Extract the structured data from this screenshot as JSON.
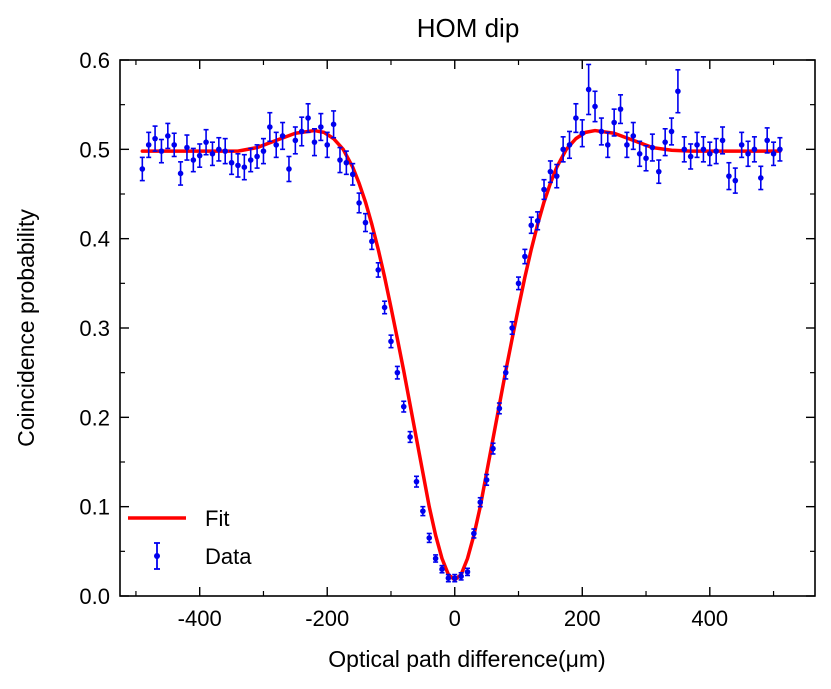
{
  "chart_data": {
    "type": "scatter",
    "title": "HOM dip",
    "xlabel": "Optical path difference(μm)",
    "ylabel": "Coincidence probability",
    "xlim": [
      -525,
      565
    ],
    "ylim": [
      0.0,
      0.6
    ],
    "xticks": [
      -400,
      -200,
      0,
      200,
      400
    ],
    "yticks": [
      0.0,
      0.1,
      0.2,
      0.3,
      0.4,
      0.5,
      0.6
    ],
    "xtick_labels": [
      "-400",
      "-200",
      "0",
      "200",
      "400"
    ],
    "ytick_labels": [
      "0.0",
      "0.1",
      "0.2",
      "0.3",
      "0.4",
      "0.5",
      "0.6"
    ],
    "legend_position": "lower-left",
    "legend": [
      {
        "label": "Fit",
        "kind": "line"
      },
      {
        "label": "Data",
        "kind": "errorbar"
      }
    ],
    "colors": {
      "fit": "#ff0000",
      "data": "#0000ee",
      "axes": "#000000"
    },
    "series": [
      {
        "name": "Fit",
        "kind": "line",
        "model": "HOM dip: 0.498 - 0.48*exp(-(x/97)^2) + 0.03*exp(-((|x|-205)/60)^2)",
        "x": [
          -490,
          -460,
          -430,
          -400,
          -370,
          -340,
          -310,
          -280,
          -250,
          -220,
          -205,
          -190,
          -175,
          -160,
          -150,
          -140,
          -130,
          -120,
          -110,
          -100,
          -90,
          -80,
          -70,
          -60,
          -50,
          -40,
          -30,
          -20,
          -10,
          0,
          10,
          20,
          30,
          40,
          50,
          60,
          70,
          80,
          90,
          100,
          110,
          120,
          130,
          140,
          150,
          160,
          175,
          190,
          205,
          220,
          250,
          280,
          310,
          340,
          370,
          400,
          430,
          460,
          490,
          510
        ],
        "y": [
          0.498,
          0.498,
          0.498,
          0.498,
          0.498,
          0.498,
          0.502,
          0.51,
          0.518,
          0.521,
          0.519,
          0.512,
          0.5,
          0.48,
          0.462,
          0.441,
          0.416,
          0.388,
          0.357,
          0.323,
          0.288,
          0.252,
          0.214,
          0.176,
          0.138,
          0.1,
          0.068,
          0.042,
          0.024,
          0.018,
          0.024,
          0.042,
          0.068,
          0.1,
          0.138,
          0.176,
          0.214,
          0.252,
          0.288,
          0.323,
          0.357,
          0.388,
          0.416,
          0.441,
          0.462,
          0.48,
          0.5,
          0.512,
          0.519,
          0.521,
          0.518,
          0.51,
          0.502,
          0.499,
          0.498,
          0.498,
          0.498,
          0.498,
          0.498,
          0.498
        ]
      },
      {
        "name": "Data",
        "kind": "errorbar",
        "x": [
          -490,
          -480,
          -470,
          -460,
          -450,
          -440,
          -430,
          -420,
          -410,
          -400,
          -390,
          -380,
          -370,
          -360,
          -350,
          -340,
          -330,
          -320,
          -310,
          -300,
          -290,
          -280,
          -270,
          -260,
          -250,
          -240,
          -230,
          -220,
          -210,
          -200,
          -190,
          -180,
          -170,
          -160,
          -150,
          -140,
          -130,
          -120,
          -110,
          -100,
          -90,
          -80,
          -70,
          -60,
          -50,
          -40,
          -30,
          -20,
          -10,
          0,
          10,
          20,
          30,
          40,
          50,
          60,
          70,
          80,
          90,
          100,
          110,
          120,
          130,
          140,
          150,
          160,
          170,
          180,
          190,
          200,
          210,
          220,
          230,
          240,
          250,
          260,
          270,
          280,
          290,
          300,
          310,
          320,
          330,
          340,
          350,
          360,
          370,
          380,
          390,
          400,
          410,
          420,
          430,
          440,
          450,
          460,
          470,
          480,
          490,
          500,
          510
        ],
        "y": [
          0.478,
          0.505,
          0.512,
          0.498,
          0.515,
          0.505,
          0.473,
          0.502,
          0.488,
          0.493,
          0.508,
          0.495,
          0.5,
          0.498,
          0.485,
          0.482,
          0.48,
          0.488,
          0.492,
          0.498,
          0.525,
          0.505,
          0.515,
          0.478,
          0.51,
          0.52,
          0.535,
          0.508,
          0.525,
          0.505,
          0.528,
          0.488,
          0.485,
          0.472,
          0.44,
          0.418,
          0.397,
          0.365,
          0.323,
          0.285,
          0.25,
          0.212,
          0.178,
          0.128,
          0.095,
          0.065,
          0.042,
          0.03,
          0.02,
          0.02,
          0.022,
          0.027,
          0.07,
          0.105,
          0.13,
          0.165,
          0.21,
          0.25,
          0.3,
          0.35,
          0.38,
          0.415,
          0.42,
          0.455,
          0.475,
          0.47,
          0.5,
          0.505,
          0.535,
          0.518,
          0.567,
          0.548,
          0.52,
          0.505,
          0.53,
          0.545,
          0.505,
          0.515,
          0.495,
          0.49,
          0.502,
          0.475,
          0.508,
          0.52,
          0.565,
          0.5,
          0.492,
          0.505,
          0.5,
          0.495,
          0.498,
          0.51,
          0.47,
          0.465,
          0.505,
          0.495,
          0.5,
          0.468,
          0.51,
          0.495,
          0.5
        ],
        "yerr": [
          0.013,
          0.014,
          0.014,
          0.013,
          0.014,
          0.013,
          0.013,
          0.014,
          0.013,
          0.013,
          0.014,
          0.013,
          0.013,
          0.014,
          0.013,
          0.013,
          0.014,
          0.013,
          0.013,
          0.014,
          0.016,
          0.014,
          0.015,
          0.014,
          0.015,
          0.016,
          0.016,
          0.015,
          0.015,
          0.014,
          0.015,
          0.014,
          0.013,
          0.012,
          0.011,
          0.01,
          0.009,
          0.008,
          0.007,
          0.007,
          0.007,
          0.006,
          0.006,
          0.006,
          0.005,
          0.005,
          0.004,
          0.004,
          0.004,
          0.004,
          0.004,
          0.004,
          0.005,
          0.005,
          0.006,
          0.006,
          0.006,
          0.007,
          0.007,
          0.007,
          0.008,
          0.009,
          0.01,
          0.011,
          0.012,
          0.013,
          0.014,
          0.015,
          0.016,
          0.015,
          0.028,
          0.017,
          0.015,
          0.014,
          0.015,
          0.016,
          0.014,
          0.015,
          0.014,
          0.014,
          0.015,
          0.013,
          0.015,
          0.015,
          0.024,
          0.014,
          0.014,
          0.014,
          0.014,
          0.013,
          0.014,
          0.015,
          0.015,
          0.014,
          0.014,
          0.014,
          0.014,
          0.013,
          0.014,
          0.013,
          0.013
        ]
      }
    ]
  }
}
